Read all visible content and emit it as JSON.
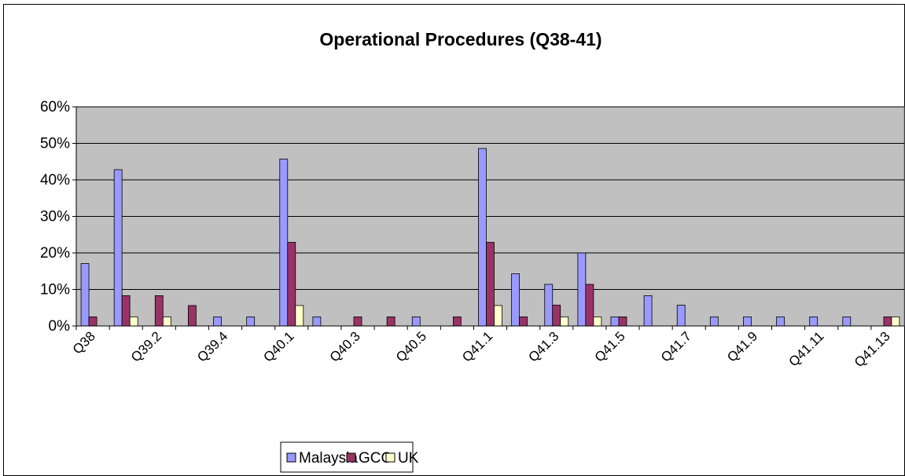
{
  "chart_data": {
    "type": "bar",
    "title": "Operational Procedures (Q38-41)",
    "categories": [
      "Q38",
      null,
      "Q39.2",
      null,
      "Q39.4",
      null,
      "Q40.1",
      null,
      "Q40.3",
      null,
      "Q40.5",
      null,
      "Q41.1",
      null,
      "Q41.3",
      null,
      "Q41.5",
      null,
      "Q41.7",
      null,
      "Q41.9",
      null,
      "Q41.11",
      null,
      "Q41.13"
    ],
    "series": [
      {
        "name": "Malaysia",
        "color": "#9999ff",
        "values": [
          17.1,
          42.8,
          0,
          0,
          2.5,
          2.5,
          45.7,
          2.5,
          0,
          0,
          2.5,
          0,
          48.6,
          14.3,
          11.4,
          20,
          2.5,
          8.3,
          5.7,
          2.5,
          2.5,
          2.5,
          2.5,
          2.5,
          0
        ]
      },
      {
        "name": "GCC",
        "color": "#993366",
        "values": [
          2.5,
          8.3,
          8.3,
          5.6,
          0,
          0,
          22.9,
          0,
          2.5,
          2.5,
          0,
          2.5,
          22.9,
          2.5,
          5.7,
          11.4,
          2.5,
          0,
          0,
          0,
          0,
          0,
          0,
          0,
          2.5
        ]
      },
      {
        "name": "UK",
        "color": "#ffffcc",
        "values": [
          0,
          2.5,
          2.5,
          0,
          0,
          0,
          5.6,
          0,
          0,
          0,
          0,
          0,
          5.6,
          0,
          2.5,
          2.5,
          0,
          0,
          0,
          0,
          0,
          0,
          0,
          0,
          2.5
        ]
      }
    ],
    "ylim": [
      0,
      60
    ],
    "yticks": [
      {
        "value": 0,
        "label": "0%"
      },
      {
        "value": 10,
        "label": "10%"
      },
      {
        "value": 20,
        "label": "20%"
      },
      {
        "value": 30,
        "label": "30%"
      },
      {
        "value": 40,
        "label": "40%"
      },
      {
        "value": 50,
        "label": "50%"
      },
      {
        "value": 60,
        "label": "60%"
      }
    ],
    "grid": true,
    "legend": "bottom",
    "plot_background": "#c0c0c0"
  }
}
